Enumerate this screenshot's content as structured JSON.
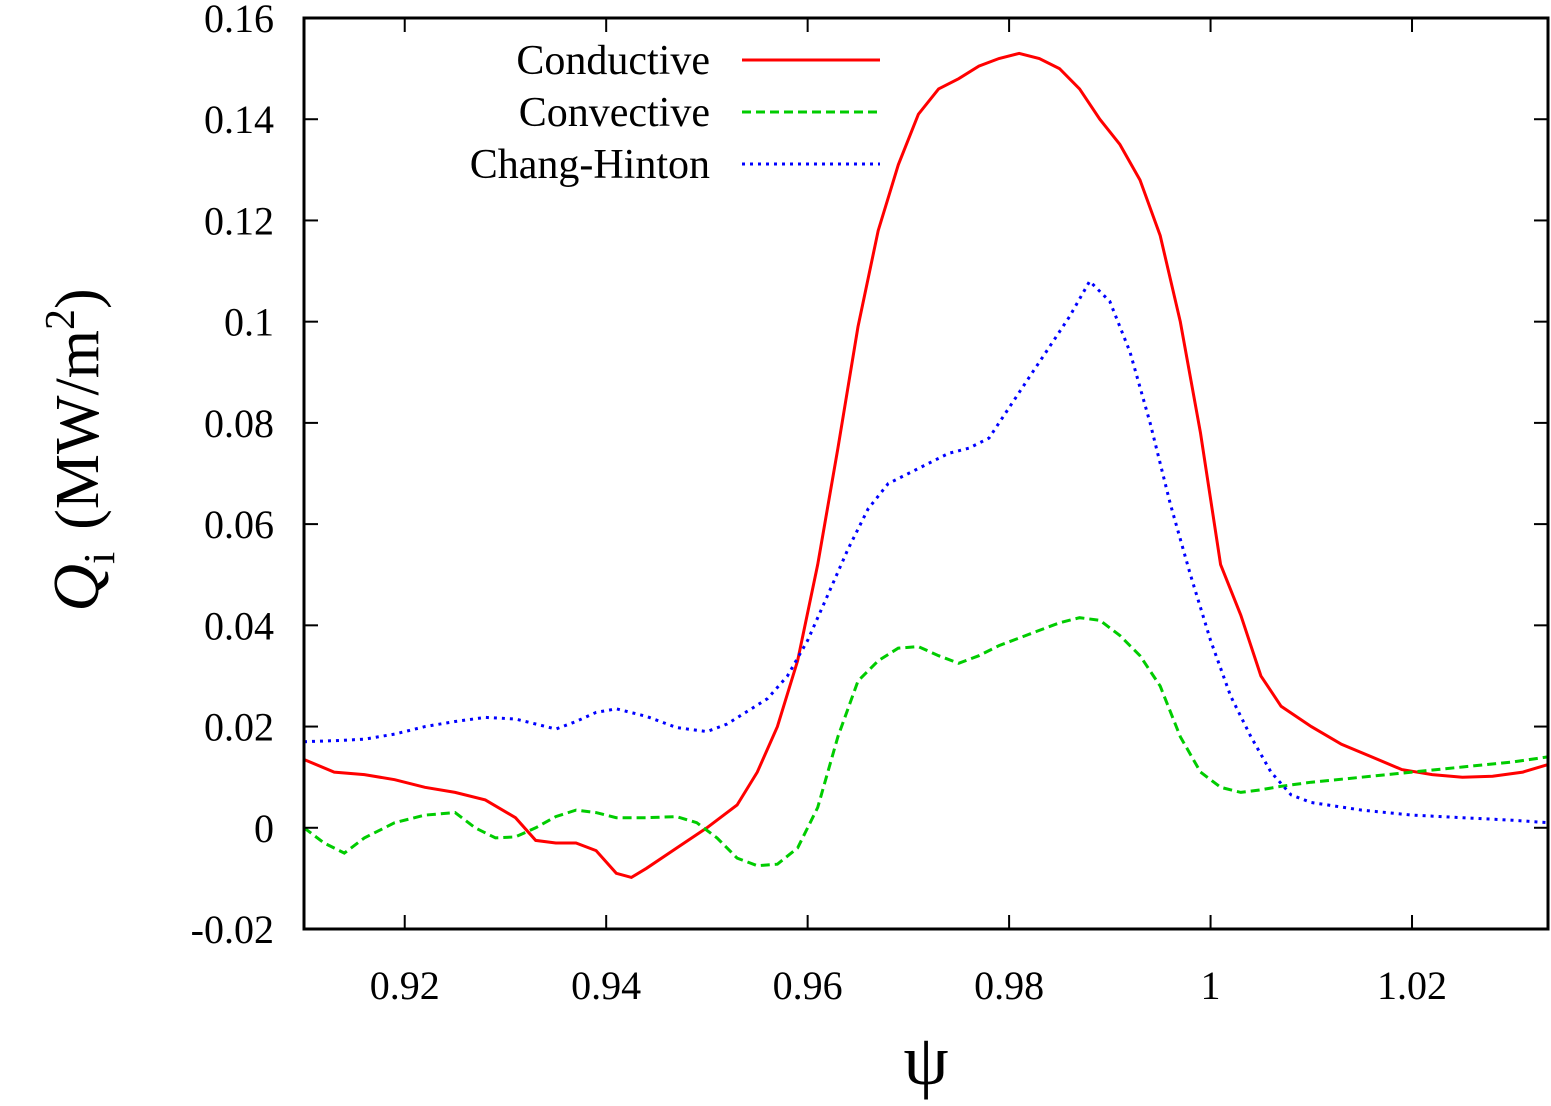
{
  "chart_data": {
    "type": "line",
    "xlabel": "ψ",
    "ylabel": {
      "symbol": "Q",
      "subscript": "i",
      "unit_prefix": "(MW/m",
      "unit_sup": "2",
      "unit_suffix": ")"
    },
    "xlim": [
      0.91,
      1.0335
    ],
    "ylim": [
      -0.02,
      0.16
    ],
    "xticks": [
      0.92,
      0.94,
      0.96,
      0.98,
      1.0,
      1.02
    ],
    "xtick_labels": [
      "0.92",
      "0.94",
      "0.96",
      "0.98",
      "1",
      "1.02"
    ],
    "yticks": [
      -0.02,
      0,
      0.02,
      0.04,
      0.06,
      0.08,
      0.1,
      0.12,
      0.14,
      0.16
    ],
    "ytick_labels": [
      "-0.02",
      "0",
      "0.02",
      "0.04",
      "0.06",
      "0.08",
      "0.1",
      "0.12",
      "0.14",
      "0.16"
    ],
    "legend_position": "top-left",
    "grid": false,
    "series": [
      {
        "name": "Conductive",
        "color": "#ff0000",
        "dash": "solid",
        "x": [
          0.91,
          0.913,
          0.916,
          0.919,
          0.922,
          0.925,
          0.928,
          0.931,
          0.933,
          0.935,
          0.937,
          0.939,
          0.941,
          0.9425,
          0.944,
          0.947,
          0.95,
          0.953,
          0.955,
          0.957,
          0.959,
          0.961,
          0.963,
          0.965,
          0.967,
          0.969,
          0.971,
          0.973,
          0.975,
          0.977,
          0.979,
          0.981,
          0.983,
          0.985,
          0.987,
          0.989,
          0.991,
          0.993,
          0.995,
          0.997,
          0.999,
          1.001,
          1.003,
          1.005,
          1.007,
          1.01,
          1.013,
          1.016,
          1.019,
          1.022,
          1.025,
          1.028,
          1.031,
          1.0335
        ],
        "y": [
          0.0135,
          0.011,
          0.0105,
          0.0095,
          0.008,
          0.007,
          0.0055,
          0.002,
          -0.0025,
          -0.003,
          -0.003,
          -0.0045,
          -0.009,
          -0.0098,
          -0.008,
          -0.004,
          0.0,
          0.0045,
          0.011,
          0.02,
          0.033,
          0.052,
          0.075,
          0.099,
          0.118,
          0.131,
          0.141,
          0.146,
          0.148,
          0.1505,
          0.152,
          0.153,
          0.152,
          0.15,
          0.146,
          0.14,
          0.135,
          0.128,
          0.117,
          0.1,
          0.078,
          0.052,
          0.042,
          0.03,
          0.024,
          0.02,
          0.0165,
          0.014,
          0.0115,
          0.0105,
          0.01,
          0.0102,
          0.011,
          0.0125
        ]
      },
      {
        "name": "Convective",
        "color": "#00cc00",
        "dash": "dashed",
        "x": [
          0.91,
          0.912,
          0.914,
          0.916,
          0.919,
          0.922,
          0.925,
          0.927,
          0.929,
          0.931,
          0.933,
          0.935,
          0.937,
          0.939,
          0.941,
          0.944,
          0.947,
          0.949,
          0.951,
          0.953,
          0.955,
          0.957,
          0.959,
          0.961,
          0.963,
          0.965,
          0.967,
          0.969,
          0.971,
          0.973,
          0.975,
          0.977,
          0.979,
          0.981,
          0.983,
          0.985,
          0.987,
          0.989,
          0.991,
          0.993,
          0.995,
          0.997,
          0.999,
          1.001,
          1.003,
          1.005,
          1.007,
          1.01,
          1.015,
          1.02,
          1.025,
          1.03,
          1.0335
        ],
        "y": [
          0.0,
          -0.003,
          -0.005,
          -0.002,
          0.001,
          0.0025,
          0.003,
          0.0,
          -0.002,
          -0.0018,
          0.0,
          0.0022,
          0.0035,
          0.003,
          0.002,
          0.002,
          0.0022,
          0.001,
          -0.002,
          -0.006,
          -0.0075,
          -0.0072,
          -0.004,
          0.004,
          0.018,
          0.029,
          0.033,
          0.0355,
          0.0358,
          0.034,
          0.0325,
          0.034,
          0.036,
          0.0375,
          0.039,
          0.0405,
          0.0415,
          0.041,
          0.038,
          0.034,
          0.028,
          0.018,
          0.011,
          0.008,
          0.007,
          0.0075,
          0.0082,
          0.009,
          0.01,
          0.011,
          0.012,
          0.013,
          0.014
        ]
      },
      {
        "name": "Chang-Hinton",
        "color": "#0000ff",
        "dash": "dotted",
        "x": [
          0.91,
          0.913,
          0.916,
          0.919,
          0.922,
          0.925,
          0.928,
          0.931,
          0.933,
          0.935,
          0.937,
          0.939,
          0.941,
          0.944,
          0.947,
          0.95,
          0.952,
          0.954,
          0.956,
          0.958,
          0.96,
          0.962,
          0.964,
          0.966,
          0.968,
          0.97,
          0.972,
          0.974,
          0.976,
          0.978,
          0.98,
          0.982,
          0.984,
          0.986,
          0.988,
          0.99,
          0.992,
          0.994,
          0.996,
          0.998,
          1.0,
          1.002,
          1.004,
          1.006,
          1.008,
          1.01,
          1.015,
          1.02,
          1.025,
          1.03,
          1.0335
        ],
        "y": [
          0.017,
          0.0172,
          0.0175,
          0.0185,
          0.02,
          0.021,
          0.0218,
          0.0215,
          0.0205,
          0.0195,
          0.021,
          0.0228,
          0.0235,
          0.022,
          0.0198,
          0.019,
          0.0205,
          0.023,
          0.0255,
          0.03,
          0.037,
          0.046,
          0.055,
          0.063,
          0.068,
          0.07,
          0.072,
          0.074,
          0.075,
          0.077,
          0.083,
          0.089,
          0.095,
          0.101,
          0.108,
          0.104,
          0.094,
          0.08,
          0.064,
          0.05,
          0.037,
          0.026,
          0.018,
          0.011,
          0.0065,
          0.005,
          0.0035,
          0.0025,
          0.002,
          0.0015,
          0.001
        ]
      }
    ]
  }
}
